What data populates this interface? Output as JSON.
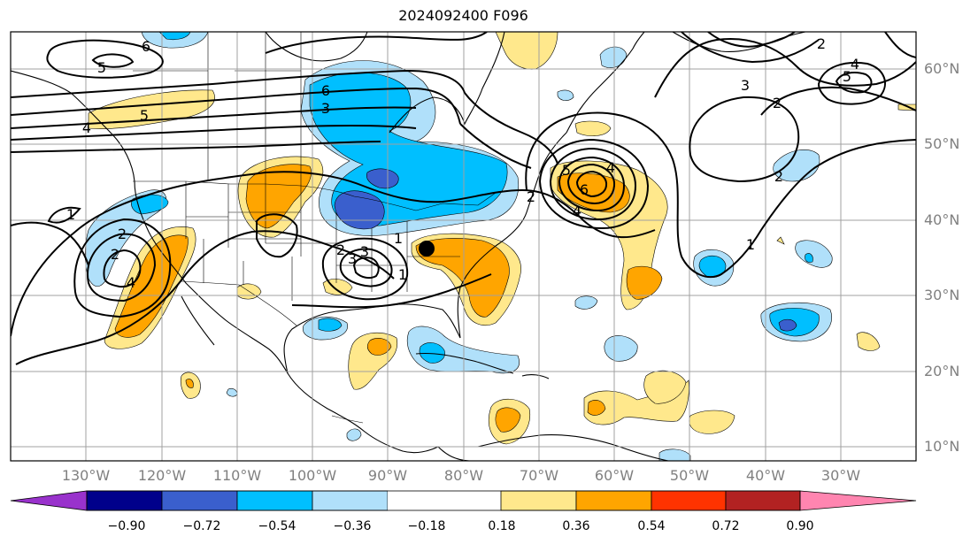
{
  "title": "2024092400 F096",
  "map": {
    "lat_labels": [
      "60°N",
      "50°N",
      "40°N",
      "30°N",
      "20°N",
      "10°N"
    ],
    "lon_labels": [
      "130°W",
      "120°W",
      "110°W",
      "100°W",
      "90°W",
      "80°W",
      "70°W",
      "60°W",
      "50°W",
      "40°W",
      "30°W"
    ],
    "contour_labels": [
      "6",
      "5",
      "6",
      "5",
      "4",
      "3",
      "2",
      "1",
      "1",
      "2",
      "3",
      "4",
      "2",
      "3",
      "1",
      "2",
      "5",
      "4",
      "6",
      "4",
      "3",
      "2",
      "5",
      "4",
      "2",
      "2",
      "1"
    ],
    "marker": "storm-center-dot"
  },
  "colorbar": {
    "ticks": [
      "−0.90",
      "−0.72",
      "−0.54",
      "−0.36",
      "−0.18",
      "0.18",
      "0.36",
      "0.54",
      "0.72",
      "0.90"
    ],
    "colors": [
      "#9932cc",
      "#00008b",
      "#3a5fcd",
      "#00bfff",
      "#b0e0fa",
      "#ffffff",
      "#ffe88c",
      "#ffa500",
      "#ff3300",
      "#b22222",
      "#ff85b0"
    ]
  }
}
